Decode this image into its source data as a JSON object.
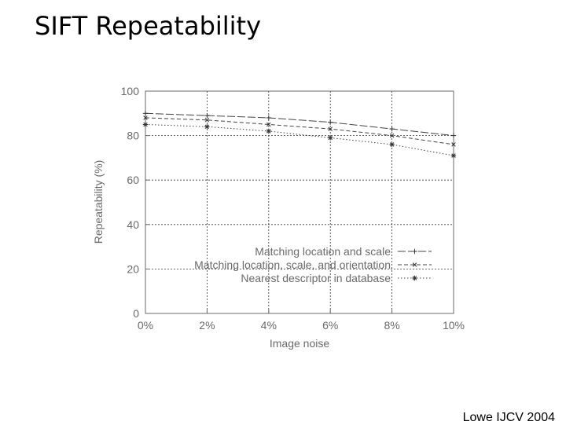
{
  "slide": {
    "title": "SIFT Repeatability",
    "citation": "Lowe IJCV 2004"
  },
  "chart_data": {
    "type": "line",
    "xlabel": "Image noise",
    "ylabel": "Repeatability (%)",
    "x": [
      0,
      2,
      4,
      6,
      8,
      10
    ],
    "x_tick_labels": [
      "0%",
      "2%",
      "4%",
      "6%",
      "8%",
      "10%"
    ],
    "xlim": [
      0,
      10
    ],
    "ylim": [
      0,
      100
    ],
    "y_ticks": [
      0,
      20,
      40,
      60,
      80,
      100
    ],
    "grid": true,
    "legend_position": "lower-right",
    "series": [
      {
        "name": "Matching location and scale",
        "marker": "+",
        "dash": "long",
        "values": [
          90,
          89,
          88,
          86,
          83,
          80
        ]
      },
      {
        "name": "Matching location, scale, and orientation",
        "marker": "x",
        "dash": "medium",
        "values": [
          88,
          87,
          85,
          83,
          80,
          76
        ]
      },
      {
        "name": "Nearest descriptor in database",
        "marker": "*",
        "dash": "dotted",
        "values": [
          85,
          84,
          82,
          79,
          76,
          71
        ]
      }
    ]
  }
}
